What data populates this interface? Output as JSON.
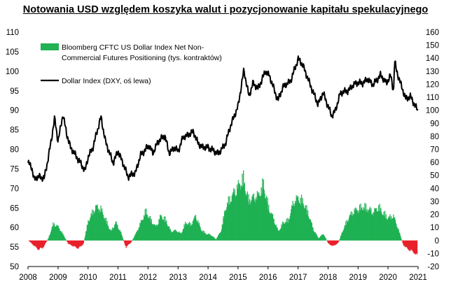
{
  "chart_data": {
    "type": "bar+line",
    "title": "Notowania USD względem koszyka walut i pozycjonowanie kapitału spekulacyjnego",
    "x_range": [
      "2008-01-01",
      "2021-01-01"
    ],
    "x_ticks": [
      "2008",
      "2009",
      "2010",
      "2011",
      "2012",
      "2013",
      "2014",
      "2015",
      "2016",
      "2017",
      "2018",
      "2019",
      "2020",
      "2021"
    ],
    "y_left": {
      "min": 50,
      "max": 110,
      "ticks": [
        50,
        55,
        60,
        65,
        70,
        75,
        80,
        85,
        90,
        95,
        100,
        105,
        110
      ]
    },
    "y_right": {
      "min": -20,
      "max": 160,
      "ticks": [
        -20,
        -10,
        0,
        10,
        20,
        30,
        40,
        50,
        60,
        70,
        80,
        90,
        100,
        110,
        120,
        130,
        140,
        150,
        160
      ]
    },
    "grid": false,
    "legend_position": "top-left",
    "series": [
      {
        "name": "Bloomberg CFTC US Dollar Index Net Non-Commercial Futures Positioning (tys. kontraktów)",
        "legend_line1": "Bloomberg CFTC US Dollar Index Net Non-",
        "legend_line2": "Commercial Futures Positioning (tys. kontraktów)",
        "axis": "right",
        "style": "bars",
        "positive_color": "#1fb153",
        "negative_color": "#e8202a",
        "points": [
          [
            "2008-01-01",
            0
          ],
          [
            "2008-03-01",
            -4
          ],
          [
            "2008-05-01",
            -8
          ],
          [
            "2008-07-01",
            -6
          ],
          [
            "2008-09-01",
            2
          ],
          [
            "2008-11-01",
            15
          ],
          [
            "2009-01-01",
            12
          ],
          [
            "2009-03-01",
            5
          ],
          [
            "2009-05-01",
            -3
          ],
          [
            "2009-07-01",
            -5
          ],
          [
            "2009-09-01",
            -7
          ],
          [
            "2009-11-01",
            -3
          ],
          [
            "2010-01-01",
            18
          ],
          [
            "2010-04-01",
            30
          ],
          [
            "2010-06-01",
            28
          ],
          [
            "2010-08-01",
            18
          ],
          [
            "2010-10-01",
            8
          ],
          [
            "2010-12-01",
            16
          ],
          [
            "2011-02-01",
            7
          ],
          [
            "2011-04-01",
            -6
          ],
          [
            "2011-06-01",
            -2
          ],
          [
            "2011-08-01",
            6
          ],
          [
            "2011-10-01",
            16
          ],
          [
            "2011-12-01",
            26
          ],
          [
            "2012-02-01",
            18
          ],
          [
            "2012-04-01",
            12
          ],
          [
            "2012-06-01",
            22
          ],
          [
            "2012-08-01",
            18
          ],
          [
            "2012-10-01",
            8
          ],
          [
            "2012-12-01",
            9
          ],
          [
            "2013-02-01",
            6
          ],
          [
            "2013-04-01",
            16
          ],
          [
            "2013-06-01",
            14
          ],
          [
            "2013-08-01",
            22
          ],
          [
            "2013-10-01",
            10
          ],
          [
            "2013-12-01",
            6
          ],
          [
            "2014-02-01",
            5
          ],
          [
            "2014-04-01",
            1
          ],
          [
            "2014-06-01",
            8
          ],
          [
            "2014-08-01",
            30
          ],
          [
            "2014-10-01",
            38
          ],
          [
            "2014-12-01",
            45
          ],
          [
            "2015-03-01",
            55
          ],
          [
            "2015-05-01",
            36
          ],
          [
            "2015-07-01",
            38
          ],
          [
            "2015-09-01",
            40
          ],
          [
            "2015-11-01",
            50
          ],
          [
            "2016-01-01",
            30
          ],
          [
            "2016-03-01",
            20
          ],
          [
            "2016-05-01",
            8
          ],
          [
            "2016-07-01",
            16
          ],
          [
            "2016-09-01",
            18
          ],
          [
            "2016-11-01",
            34
          ],
          [
            "2017-01-01",
            38
          ],
          [
            "2017-03-01",
            34
          ],
          [
            "2017-05-01",
            24
          ],
          [
            "2017-07-01",
            10
          ],
          [
            "2017-09-01",
            2
          ],
          [
            "2017-11-01",
            6
          ],
          [
            "2018-01-01",
            -3
          ],
          [
            "2018-03-01",
            -5
          ],
          [
            "2018-05-01",
            -2
          ],
          [
            "2018-07-01",
            10
          ],
          [
            "2018-09-01",
            20
          ],
          [
            "2018-11-01",
            26
          ],
          [
            "2019-01-01",
            28
          ],
          [
            "2019-03-01",
            30
          ],
          [
            "2019-05-01",
            28
          ],
          [
            "2019-07-01",
            25
          ],
          [
            "2019-09-01",
            30
          ],
          [
            "2019-11-01",
            24
          ],
          [
            "2020-01-01",
            20
          ],
          [
            "2020-03-01",
            22
          ],
          [
            "2020-05-01",
            10
          ],
          [
            "2020-07-01",
            -4
          ],
          [
            "2020-09-01",
            -8
          ],
          [
            "2020-11-01",
            -10
          ],
          [
            "2020-12-15",
            -14
          ]
        ]
      },
      {
        "name": "Dollar Index (DXY, oś lewa)",
        "axis": "left",
        "style": "line",
        "color": "#000000",
        "points": [
          [
            "2008-01-01",
            76.5
          ],
          [
            "2008-02-15",
            75.5
          ],
          [
            "2008-03-15",
            72.2
          ],
          [
            "2008-04-15",
            72.8
          ],
          [
            "2008-06-01",
            73
          ],
          [
            "2008-07-15",
            72.5
          ],
          [
            "2008-09-01",
            77.5
          ],
          [
            "2008-10-15",
            83
          ],
          [
            "2008-11-20",
            88
          ],
          [
            "2009-01-01",
            82
          ],
          [
            "2009-03-01",
            89
          ],
          [
            "2009-04-15",
            84
          ],
          [
            "2009-06-01",
            80.5
          ],
          [
            "2009-08-01",
            78.5
          ],
          [
            "2009-10-01",
            76.5
          ],
          [
            "2009-11-25",
            74.5
          ],
          [
            "2010-01-01",
            78
          ],
          [
            "2010-03-01",
            80.5
          ],
          [
            "2010-06-07",
            88.3
          ],
          [
            "2010-08-01",
            82
          ],
          [
            "2010-11-01",
            76.5
          ],
          [
            "2011-01-01",
            79.5
          ],
          [
            "2011-03-01",
            76.5
          ],
          [
            "2011-05-01",
            73
          ],
          [
            "2011-08-01",
            74
          ],
          [
            "2011-10-01",
            78.5
          ],
          [
            "2012-01-15",
            81
          ],
          [
            "2012-03-01",
            79
          ],
          [
            "2012-05-01",
            82
          ],
          [
            "2012-07-24",
            83.5
          ],
          [
            "2012-09-15",
            79
          ],
          [
            "2012-11-15",
            80.5
          ],
          [
            "2013-01-01",
            79.5
          ],
          [
            "2013-03-01",
            83
          ],
          [
            "2013-07-08",
            84.5
          ],
          [
            "2013-09-01",
            81.5
          ],
          [
            "2013-11-01",
            80.5
          ],
          [
            "2014-01-01",
            80.5
          ],
          [
            "2014-05-08",
            78.9
          ],
          [
            "2014-08-01",
            81.5
          ],
          [
            "2014-10-01",
            86
          ],
          [
            "2015-01-01",
            91
          ],
          [
            "2015-03-13",
            100.3
          ],
          [
            "2015-05-15",
            93.5
          ],
          [
            "2015-07-01",
            97
          ],
          [
            "2015-09-01",
            95.5
          ],
          [
            "2015-12-01",
            100
          ],
          [
            "2016-01-15",
            99
          ],
          [
            "2016-05-01",
            92.5
          ],
          [
            "2016-07-01",
            96
          ],
          [
            "2016-10-01",
            97.5
          ],
          [
            "2017-01-03",
            103.2
          ],
          [
            "2017-03-01",
            101.5
          ],
          [
            "2017-05-01",
            98
          ],
          [
            "2017-09-01",
            91.5
          ],
          [
            "2017-11-01",
            94.5
          ],
          [
            "2018-02-15",
            88.5
          ],
          [
            "2018-04-01",
            90
          ],
          [
            "2018-06-01",
            94.5
          ],
          [
            "2018-09-01",
            95
          ],
          [
            "2018-12-01",
            97
          ],
          [
            "2019-03-01",
            97
          ],
          [
            "2019-05-01",
            98
          ],
          [
            "2019-07-01",
            96.5
          ],
          [
            "2019-10-01",
            99
          ],
          [
            "2019-12-15",
            97
          ],
          [
            "2020-02-01",
            99
          ],
          [
            "2020-03-09",
            94.8
          ],
          [
            "2020-03-20",
            102.8
          ],
          [
            "2020-04-15",
            100
          ],
          [
            "2020-06-01",
            97
          ],
          [
            "2020-08-01",
            93
          ],
          [
            "2020-10-01",
            93.5
          ],
          [
            "2020-12-01",
            91
          ],
          [
            "2020-12-31",
            89.9
          ]
        ]
      }
    ]
  }
}
